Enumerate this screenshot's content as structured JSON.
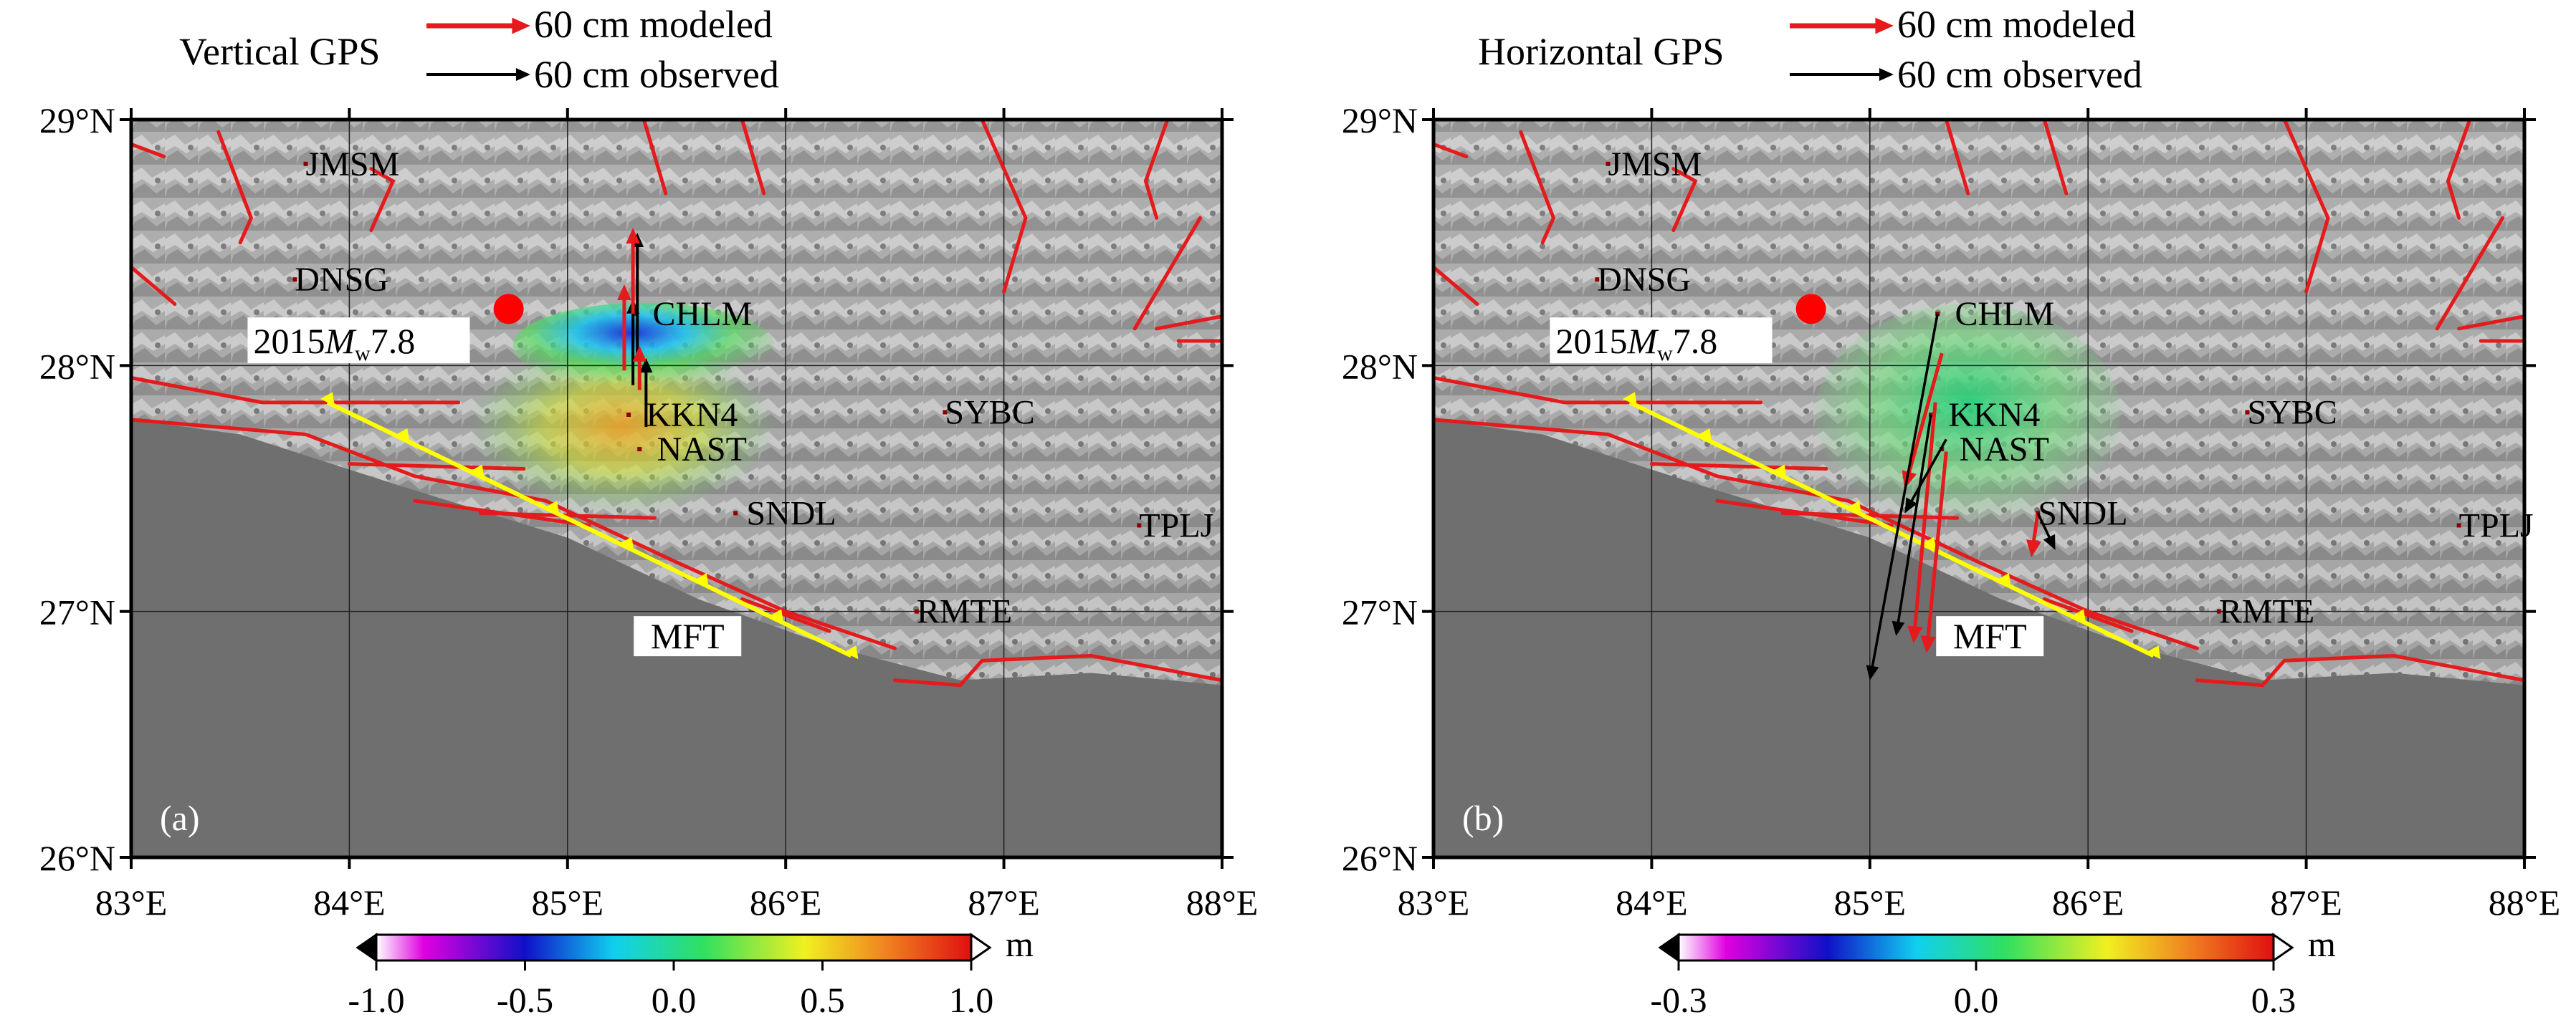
{
  "panels": [
    {
      "id": "a",
      "panel_label": "(a)",
      "legend_title": "Vertical GPS",
      "legend_modeled": "60 cm modeled",
      "legend_observed": "60 cm observed",
      "x_ticks": [
        "83°E",
        "84°E",
        "85°E",
        "86°E",
        "87°E",
        "88°E"
      ],
      "y_ticks": [
        "29°N",
        "28°N",
        "27°N",
        "26°N"
      ],
      "stations": [
        {
          "name": "JMSM",
          "lon": 83.8,
          "lat": 28.82,
          "label_dx": 0,
          "label_dy": 0
        },
        {
          "name": "DNSG",
          "lon": 83.75,
          "lat": 28.35,
          "label_dx": 0,
          "label_dy": 0
        },
        {
          "name": "CHLM",
          "lon": 85.31,
          "lat": 28.21,
          "label_dx": 0.08,
          "label_dy": 0
        },
        {
          "name": "KKN4",
          "lon": 85.28,
          "lat": 27.8,
          "label_dx": 0.08,
          "label_dy": 0
        },
        {
          "name": "NAST",
          "lon": 85.33,
          "lat": 27.66,
          "label_dx": 0.08,
          "label_dy": 0
        },
        {
          "name": "SNDL",
          "lon": 85.77,
          "lat": 27.4,
          "label_dx": 0.05,
          "label_dy": 0
        },
        {
          "name": "SYBC",
          "lon": 86.73,
          "lat": 27.81,
          "label_dx": 0,
          "label_dy": 0
        },
        {
          "name": "TPLJ",
          "lon": 87.62,
          "lat": 27.35,
          "label_dx": 0,
          "label_dy": 0
        },
        {
          "name": "RMTE",
          "lon": 86.6,
          "lat": 27.0,
          "label_dx": 0,
          "label_dy": 0
        }
      ],
      "event_label_year": "2015",
      "event_label_m": "M",
      "event_label_sub": "w",
      "event_label_mag": "7.8",
      "fault_label": "MFT",
      "colorbar_ticks": [
        "-1.0",
        "-0.5",
        "0.0",
        "0.5",
        "1.0"
      ],
      "colorbar_unit": "m"
    },
    {
      "id": "b",
      "panel_label": "(b)",
      "legend_title": "Horizontal GPS",
      "legend_modeled": "60 cm modeled",
      "legend_observed": "60 cm observed",
      "x_ticks": [
        "83°E",
        "84°E",
        "85°E",
        "86°E",
        "87°E",
        "88°E"
      ],
      "y_ticks": [
        "29°N",
        "28°N",
        "27°N",
        "26°N"
      ],
      "stations": [
        {
          "name": "JMSM",
          "lon": 83.8,
          "lat": 28.82,
          "label_dx": 0,
          "label_dy": 0
        },
        {
          "name": "DNSG",
          "lon": 83.75,
          "lat": 28.35,
          "label_dx": 0,
          "label_dy": 0
        },
        {
          "name": "CHLM",
          "lon": 85.31,
          "lat": 28.21,
          "label_dx": 0.08,
          "label_dy": 0
        },
        {
          "name": "KKN4",
          "lon": 85.28,
          "lat": 27.8,
          "label_dx": 0.08,
          "label_dy": 0
        },
        {
          "name": "NAST",
          "lon": 85.33,
          "lat": 27.66,
          "label_dx": 0.08,
          "label_dy": 0
        },
        {
          "name": "SNDL",
          "lon": 85.77,
          "lat": 27.4,
          "label_dx": 0,
          "label_dy": 0
        },
        {
          "name": "SYBC",
          "lon": 86.73,
          "lat": 27.81,
          "label_dx": 0,
          "label_dy": 0
        },
        {
          "name": "TPLJ",
          "lon": 87.7,
          "lat": 27.35,
          "label_dx": 0,
          "label_dy": 0
        },
        {
          "name": "RMTE",
          "lon": 86.6,
          "lat": 27.0,
          "label_dx": 0,
          "label_dy": 0
        }
      ],
      "event_label_year": "2015",
      "event_label_m": "M",
      "event_label_sub": "w",
      "event_label_mag": "7.8",
      "fault_label": "MFT",
      "colorbar_ticks": [
        "-0.3",
        "0.0",
        "0.3"
      ],
      "colorbar_unit": "m"
    }
  ],
  "map_extent": {
    "lon": [
      83,
      88
    ],
    "lat": [
      26,
      29
    ]
  },
  "epicenter": {
    "lon": 84.73,
    "lat": 28.23
  },
  "mft_trace": [
    [
      83.9,
      27.85
    ],
    [
      86.3,
      26.82
    ]
  ],
  "vertical_modeled": [
    {
      "station": "CHLM",
      "lon": 85.3,
      "lat": 28.21,
      "dlat": 0.35
    },
    {
      "station": "KKN4",
      "lon": 85.26,
      "lat": 27.98,
      "dlat": 0.35
    },
    {
      "station": "NAST",
      "lon": 85.33,
      "lat": 27.9,
      "dlat": 0.18
    }
  ],
  "vertical_observed": [
    {
      "station": "CHLM",
      "lon": 85.32,
      "lat": 28.02,
      "dlat": 0.52
    },
    {
      "station": "KKN4",
      "lon": 85.3,
      "lat": 27.92,
      "dlat": 0.35
    },
    {
      "station": "NAST",
      "lon": 85.36,
      "lat": 27.75,
      "dlat": 0.28
    }
  ],
  "horizontal_modeled": [
    {
      "station": "CHLM",
      "from": [
        85.33,
        28.05
      ],
      "to": [
        85.16,
        27.5
      ]
    },
    {
      "station": "KKN4",
      "from": [
        85.3,
        27.85
      ],
      "to": [
        85.2,
        26.87
      ]
    },
    {
      "station": "NAST",
      "from": [
        85.35,
        27.65
      ],
      "to": [
        85.26,
        26.83
      ]
    },
    {
      "station": "SNDL",
      "from": [
        85.77,
        27.4
      ],
      "to": [
        85.74,
        27.22
      ]
    }
  ],
  "horizontal_observed": [
    {
      "station": "CHLM",
      "from": [
        85.31,
        28.21
      ],
      "to": [
        85.0,
        26.72
      ]
    },
    {
      "station": "KKN4",
      "from": [
        85.28,
        27.8
      ],
      "to": [
        85.12,
        26.9
      ]
    },
    {
      "station": "NAST",
      "from": [
        85.35,
        27.7
      ],
      "to": [
        85.16,
        27.4
      ]
    },
    {
      "station": "SNDL",
      "from": [
        85.77,
        27.4
      ],
      "to": [
        85.85,
        27.25
      ]
    }
  ],
  "colors": {
    "modeled": "#e41a1c",
    "observed": "#000000",
    "fault": "#e41a1c",
    "mft": "#ffff00",
    "epicenter": "#ff0000"
  }
}
